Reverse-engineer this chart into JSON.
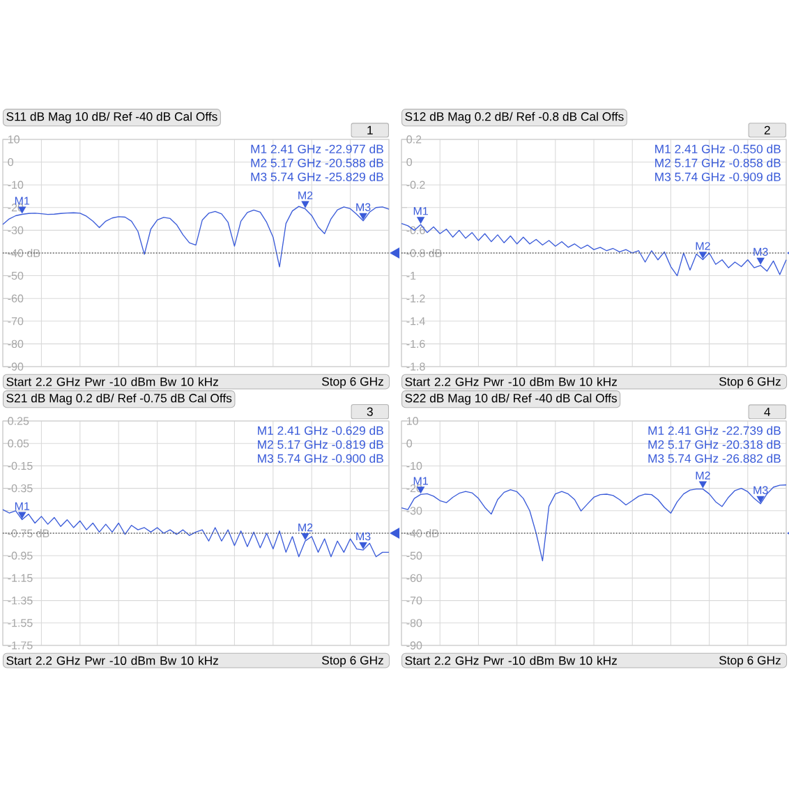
{
  "chart_data": [
    {
      "type": "line",
      "title": "S11 dB Mag 10 dB/ Ref -40 dB Cal Offs",
      "ylim": [
        -90,
        10
      ],
      "grid": true,
      "tick_labels": "y",
      "categories": [
        null,
        null,
        null,
        null,
        null,
        null,
        null,
        null,
        null,
        null,
        null,
        null,
        null,
        null,
        null,
        null,
        null,
        null,
        null,
        null,
        null,
        null,
        null,
        null,
        null,
        null,
        null,
        null,
        null,
        null,
        null,
        null,
        null,
        null,
        null,
        null,
        null,
        null,
        null,
        null,
        null,
        null,
        null,
        null,
        null,
        null,
        null,
        null,
        null,
        null,
        null,
        null,
        null,
        null,
        null,
        null,
        null,
        null,
        null,
        null,
        null
      ],
      "yticks": [
        10,
        0,
        -10,
        -20,
        -30,
        {
          "value": -40,
          "label": "-40 dB"
        },
        -50,
        -60,
        -70,
        -80,
        -90
      ],
      "ref_lines": [
        {
          "axis": "y",
          "value": -40,
          "line_style": "dotted"
        }
      ],
      "annotations": [
        "1",
        "M1  2.41 GHz  -22.977 dB",
        "M2  5.17 GHz  -20.588 dB",
        "M3  5.74 GHz  -25.829 dB",
        "Start  2.2 GHz   Pwr  -10 dBm  Bw  10 kHz",
        "Stop  6 GHz",
        {
          "text": "M1",
          "y": -22.977
        },
        {
          "text": "M2",
          "y": -20.588
        },
        {
          "text": "M3",
          "y": -25.829
        }
      ],
      "series": [
        {
          "color": "#3a5bd9",
          "values": [
            -27.4,
            -25.0,
            -23.6,
            -22.977,
            -22.6,
            -22.5,
            -22.7,
            -23.0,
            -22.9,
            -22.6,
            -22.4,
            -22.3,
            -22.5,
            -23.8,
            -26.0,
            -28.8,
            -26.0,
            -24.6,
            -24.0,
            -24.2,
            -26.0,
            -30.5,
            -40.6,
            -29.5,
            -25.5,
            -24.3,
            -24.8,
            -27.5,
            -32.0,
            -35.5,
            -36.5,
            -25.5,
            -22.5,
            -21.7,
            -22.8,
            -26.5,
            -37.0,
            -26.0,
            -22.2,
            -21.1,
            -22.0,
            -26.5,
            -33.0,
            -46.1,
            -27.0,
            -21.5,
            -19.5,
            -20.588,
            -23.5,
            -28.5,
            -31.5,
            -25.0,
            -21.0,
            -19.7,
            -20.5,
            -23.0,
            -25.829,
            -22.0,
            -20.0,
            -19.7,
            -20.7
          ]
        }
      ]
    },
    {
      "type": "line",
      "title": "S12 dB Mag 0.2 dB/ Ref -0.8 dB Cal Offs",
      "ylim": [
        -1.8,
        0.2
      ],
      "grid": true,
      "tick_labels": "y",
      "categories": [
        null,
        null,
        null,
        null,
        null,
        null,
        null,
        null,
        null,
        null,
        null,
        null,
        null,
        null,
        null,
        null,
        null,
        null,
        null,
        null,
        null,
        null,
        null,
        null,
        null,
        null,
        null,
        null,
        null,
        null,
        null,
        null,
        null,
        null,
        null,
        null,
        null,
        null,
        null,
        null,
        null,
        null,
        null,
        null,
        null,
        null,
        null,
        null,
        null,
        null,
        null,
        null,
        null,
        null,
        null,
        null,
        null,
        null,
        null,
        null,
        null
      ],
      "yticks": [
        0.2,
        0,
        -0.2,
        {
          "value": -0.4,
          "label": null
        },
        -0.6,
        {
          "value": -0.8,
          "label": "-0.8 dB"
        },
        -1,
        -1.2,
        -1.4,
        -1.6,
        -1.8
      ],
      "ref_lines": [
        {
          "axis": "y",
          "value": -0.8,
          "line_style": "dotted"
        }
      ],
      "annotations": [
        "2",
        "M1  2.41 GHz  -0.550 dB",
        "M2  5.17 GHz  -0.858 dB",
        "M3  5.74 GHz  -0.909 dB",
        "Start  2.2 GHz   Pwr  -10 dBm  Bw  10 kHz",
        "Stop  6 GHz",
        {
          "text": "M1",
          "y": -0.55
        },
        {
          "text": "M2",
          "y": -0.858
        },
        {
          "text": "M3",
          "y": -0.909
        }
      ],
      "series": [
        {
          "color": "#3a5bd9",
          "values": [
            -0.54,
            -0.56,
            -0.6,
            -0.55,
            -0.62,
            -0.57,
            -0.63,
            -0.59,
            -0.66,
            -0.6,
            -0.67,
            -0.62,
            -0.69,
            -0.63,
            -0.7,
            -0.64,
            -0.71,
            -0.65,
            -0.72,
            -0.66,
            -0.72,
            -0.68,
            -0.73,
            -0.69,
            -0.74,
            -0.7,
            -0.75,
            -0.72,
            -0.76,
            -0.73,
            -0.77,
            -0.75,
            -0.78,
            -0.76,
            -0.79,
            -0.77,
            -0.8,
            -0.78,
            -0.88,
            -0.78,
            -0.86,
            -0.79,
            -0.92,
            -1.0,
            -0.8,
            -0.95,
            -0.81,
            -0.858,
            -0.8,
            -0.9,
            -0.86,
            -0.93,
            -0.88,
            -0.92,
            -0.86,
            -0.93,
            -0.909,
            -0.96,
            -0.87,
            -0.99,
            -0.86
          ]
        }
      ]
    },
    {
      "type": "line",
      "title": "S21 dB Mag 0.2 dB/ Ref -0.75 dB Cal Offs",
      "ylim": [
        -1.75,
        0.25
      ],
      "grid": true,
      "tick_labels": "y",
      "categories": [
        null,
        null,
        null,
        null,
        null,
        null,
        null,
        null,
        null,
        null,
        null,
        null,
        null,
        null,
        null,
        null,
        null,
        null,
        null,
        null,
        null,
        null,
        null,
        null,
        null,
        null,
        null,
        null,
        null,
        null,
        null,
        null,
        null,
        null,
        null,
        null,
        null,
        null,
        null,
        null,
        null,
        null,
        null,
        null,
        null,
        null,
        null,
        null,
        null,
        null,
        null,
        null,
        null,
        null,
        null,
        null,
        null,
        null,
        null,
        null,
        null
      ],
      "yticks": [
        0.25,
        0.05,
        -0.15,
        -0.35,
        {
          "value": -0.55,
          "label": null
        },
        {
          "value": -0.75,
          "label": "-0.75 dB"
        },
        -0.95,
        -1.15,
        -1.35,
        -1.55,
        -1.75
      ],
      "ref_lines": [
        {
          "axis": "y",
          "value": -0.75,
          "line_style": "dotted"
        }
      ],
      "annotations": [
        "3",
        "M1  2.41 GHz  -0.629 dB",
        "M2  5.17 GHz  -0.819 dB",
        "M3  5.74 GHz  -0.900 dB",
        "Start  2.2 GHz   Pwr  -10 dBm  Bw  10 kHz",
        "Stop  6 GHz",
        {
          "text": "M1",
          "y": -0.629
        },
        {
          "text": "M2",
          "y": -0.819
        },
        {
          "text": "M3",
          "y": -0.9
        }
      ],
      "series": [
        {
          "color": "#3a5bd9",
          "values": [
            -0.54,
            -0.57,
            -0.55,
            -0.629,
            -0.58,
            -0.66,
            -0.6,
            -0.67,
            -0.61,
            -0.69,
            -0.63,
            -0.7,
            -0.64,
            -0.72,
            -0.66,
            -0.74,
            -0.67,
            -0.74,
            -0.66,
            -0.76,
            -0.68,
            -0.72,
            -0.7,
            -0.74,
            -0.7,
            -0.75,
            -0.72,
            -0.76,
            -0.72,
            -0.77,
            -0.74,
            -0.72,
            -0.82,
            -0.7,
            -0.82,
            -0.72,
            -0.86,
            -0.73,
            -0.87,
            -0.74,
            -0.88,
            -0.75,
            -0.89,
            -0.73,
            -0.92,
            -0.78,
            -0.96,
            -0.819,
            -0.78,
            -0.92,
            -0.8,
            -0.96,
            -0.82,
            -0.92,
            -0.8,
            -0.89,
            -0.9,
            -0.84,
            -0.96,
            -0.92,
            -0.92
          ]
        }
      ]
    },
    {
      "type": "line",
      "title": "S22 dB Mag 10 dB/ Ref -40 dB Cal Offs",
      "ylim": [
        -90,
        10
      ],
      "grid": true,
      "tick_labels": "y",
      "categories": [
        null,
        null,
        null,
        null,
        null,
        null,
        null,
        null,
        null,
        null,
        null,
        null,
        null,
        null,
        null,
        null,
        null,
        null,
        null,
        null,
        null,
        null,
        null,
        null,
        null,
        null,
        null,
        null,
        null,
        null,
        null,
        null,
        null,
        null,
        null,
        null,
        null,
        null,
        null,
        null,
        null,
        null,
        null,
        null,
        null,
        null,
        null,
        null,
        null,
        null,
        null,
        null,
        null,
        null,
        null,
        null,
        null,
        null,
        null,
        null,
        null
      ],
      "yticks": [
        10,
        0,
        -10,
        -20,
        -30,
        {
          "value": -40,
          "label": "-40 dB"
        },
        -50,
        -60,
        -70,
        -80,
        -90
      ],
      "ref_lines": [
        {
          "axis": "y",
          "value": -40,
          "line_style": "dotted"
        }
      ],
      "annotations": [
        "4",
        "M1  2.41 GHz  -22.739 dB",
        "M2  5.17 GHz  -20.318 dB",
        "M3  5.74 GHz  -26.882 dB",
        "Start  2.2 GHz   Pwr  -10 dBm  Bw  10 kHz",
        "Stop  6 GHz",
        {
          "text": "M1",
          "y": -22.739
        },
        {
          "text": "M2",
          "y": -20.318
        },
        {
          "text": "M3",
          "y": -26.882
        }
      ],
      "series": [
        {
          "color": "#3a5bd9",
          "values": [
            -28.7,
            -29.5,
            -24.5,
            -22.739,
            -22.4,
            -23.5,
            -25.5,
            -26.4,
            -24.0,
            -22.2,
            -21.4,
            -22.0,
            -24.5,
            -28.5,
            -31.5,
            -25.0,
            -21.8,
            -20.6,
            -21.5,
            -24.5,
            -30.0,
            -40.0,
            -52.3,
            -28.0,
            -22.5,
            -21.4,
            -22.5,
            -25.0,
            -30.1,
            -27.0,
            -24.0,
            -22.8,
            -22.6,
            -23.2,
            -25.0,
            -27.4,
            -25.5,
            -23.5,
            -22.6,
            -22.8,
            -25.0,
            -28.5,
            -31.1,
            -26.0,
            -22.5,
            -20.8,
            -20.3,
            -20.318,
            -22.5,
            -26.0,
            -28.1,
            -24.0,
            -21.0,
            -20.0,
            -21.5,
            -24.5,
            -26.882,
            -22.5,
            -19.5,
            -18.6,
            -18.5
          ]
        }
      ]
    }
  ]
}
